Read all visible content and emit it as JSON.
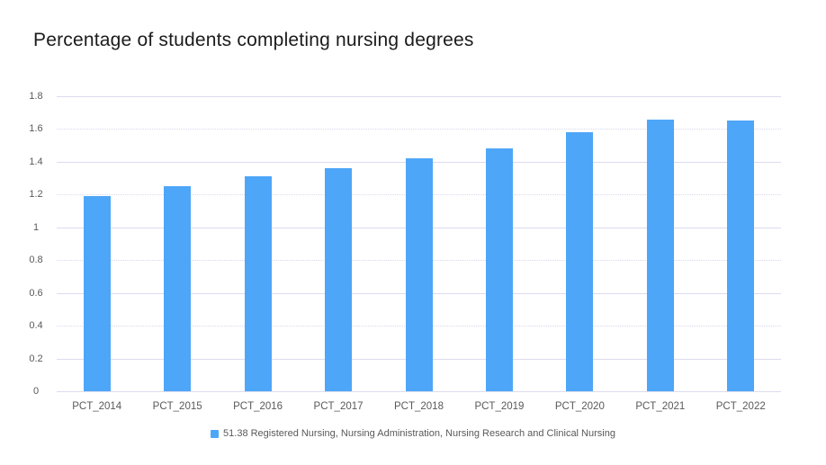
{
  "chart_data": {
    "type": "bar",
    "title": "Percentage of students completing nursing degrees",
    "categories": [
      "PCT_2014",
      "PCT_2015",
      "PCT_2016",
      "PCT_2017",
      "PCT_2018",
      "PCT_2019",
      "PCT_2020",
      "PCT_2021",
      "PCT_2022"
    ],
    "series": [
      {
        "name": "51.38 Registered Nursing, Nursing Administration, Nursing Research and Clinical Nursing",
        "values": [
          1.19,
          1.25,
          1.31,
          1.36,
          1.42,
          1.48,
          1.58,
          1.66,
          1.65
        ],
        "color": "#4DA6F8"
      }
    ],
    "xlabel": "",
    "ylabel": "",
    "ylim": [
      0,
      1.8
    ],
    "ytick_step": 0.2,
    "ytick_labels": [
      "0",
      "0.2",
      "0.4",
      "0.6",
      "0.8",
      "1",
      "1.2",
      "1.4",
      "1.6",
      "1.8"
    ],
    "grid": true,
    "legend_position": "bottom",
    "colors": {
      "bar": "#4DA6F8",
      "gridline_solid": "#DCDCF0",
      "gridline_dotted": "#D8D8EE",
      "axis_text": "#595959",
      "legend_text": "#595959",
      "title_text": "#1B1B1B",
      "background": "#FFFFFF"
    }
  }
}
